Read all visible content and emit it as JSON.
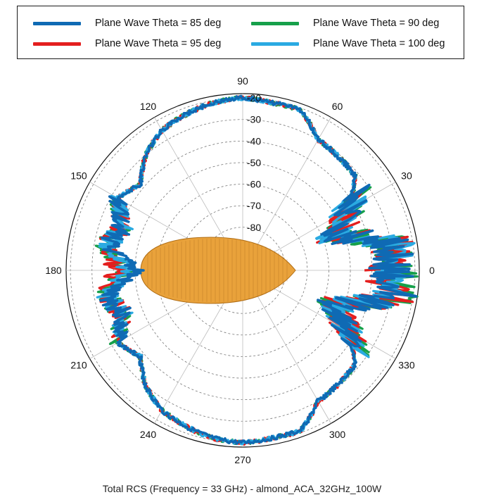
{
  "chart_data": {
    "type": "polar-line",
    "title": "Total RCS (Frequency = 33 GHz) - almond_ACA_32GHz_100W",
    "angular_ticks": [
      "0",
      "30",
      "60",
      "90",
      "120",
      "150",
      "180",
      "210",
      "240",
      "270",
      "300",
      "330"
    ],
    "radial_ticks": [
      "-20",
      "-30",
      "-40",
      "-50",
      "-60",
      "-70",
      "-80"
    ],
    "radial_range_dB": [
      -100,
      -18
    ],
    "legend_position": "top",
    "series": [
      {
        "name": "Plane Wave Theta = 85 deg",
        "color": "#0f6ab4",
        "values": [
          -32,
          -29,
          -56,
          -44,
          -32,
          -31,
          -30,
          -21,
          -21,
          -20,
          -21,
          -23,
          -25,
          -30,
          -38,
          -33,
          -41,
          -36,
          -52
        ]
      },
      {
        "name": "Plane Wave Theta = 90 deg",
        "color": "#16a04a",
        "values": [
          -28,
          -28,
          -55,
          -43,
          -32,
          -31,
          -30,
          -21,
          -21,
          -20,
          -21,
          -23,
          -25,
          -30,
          -38,
          -33,
          -41,
          -35,
          -45
        ]
      },
      {
        "name": "Plane Wave Theta = 95 deg",
        "color": "#e41e1e",
        "values": [
          -35,
          -29,
          -54,
          -43,
          -32,
          -31,
          -30,
          -21,
          -21,
          -20,
          -21,
          -23,
          -25,
          -30,
          -38,
          -33,
          -41,
          -36,
          -42
        ]
      },
      {
        "name": "Plane Wave Theta = 100 deg",
        "color": "#2aaae2",
        "values": [
          -30,
          -30,
          -56,
          -44,
          -32,
          -31,
          -30,
          -21,
          -21,
          -20,
          -21,
          -23,
          -25,
          -30,
          -38,
          -33,
          -41,
          -36,
          -48
        ]
      }
    ],
    "series_angles_deg": [
      0,
      10,
      20,
      30,
      40,
      50,
      60,
      70,
      80,
      90,
      100,
      110,
      120,
      130,
      140,
      150,
      160,
      170,
      180
    ]
  }
}
